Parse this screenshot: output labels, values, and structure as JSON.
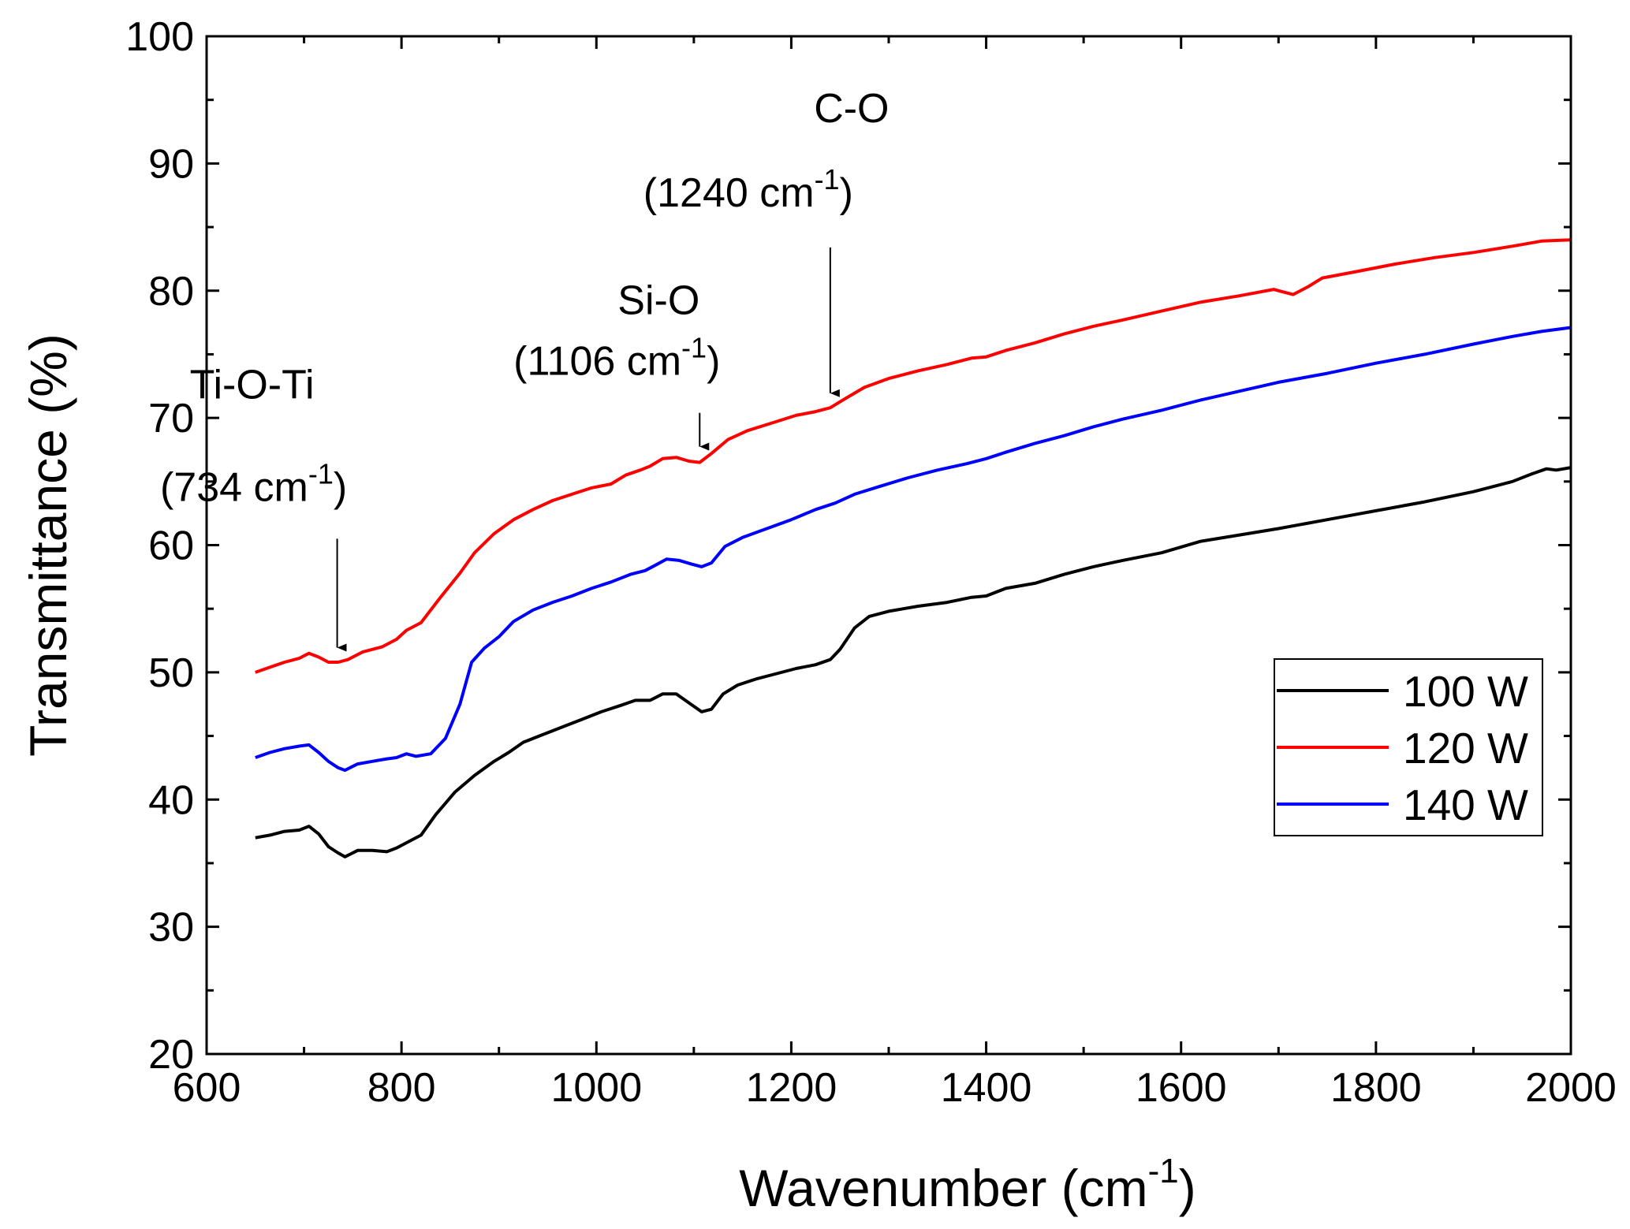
{
  "chart_data": {
    "type": "line",
    "title": "",
    "xlabel": "Wavenumber (cm",
    "xlabel_sup": "-1",
    "xlabel_close": ")",
    "ylabel": "Transmittance (%)",
    "xlim": [
      600,
      2000
    ],
    "ylim": [
      20,
      100
    ],
    "x_ticks": [
      "600",
      "800",
      "1000",
      "1200",
      "1400",
      "1600",
      "1800",
      "2000"
    ],
    "y_ticks": [
      "20",
      "30",
      "40",
      "50",
      "60",
      "70",
      "80",
      "90",
      "100"
    ],
    "grid": false,
    "legend_position": "right-center",
    "series": [
      {
        "name": "100 W",
        "color": "#000000",
        "points": [
          [
            650,
            37.0
          ],
          [
            665,
            37.2
          ],
          [
            680,
            37.5
          ],
          [
            695,
            37.6
          ],
          [
            705,
            37.9
          ],
          [
            715,
            37.3
          ],
          [
            725,
            36.3
          ],
          [
            735,
            35.8
          ],
          [
            742,
            35.5
          ],
          [
            755,
            36.0
          ],
          [
            770,
            36.0
          ],
          [
            785,
            35.9
          ],
          [
            795,
            36.2
          ],
          [
            805,
            36.6
          ],
          [
            820,
            37.2
          ],
          [
            835,
            38.8
          ],
          [
            855,
            40.6
          ],
          [
            875,
            41.9
          ],
          [
            895,
            43.0
          ],
          [
            910,
            43.7
          ],
          [
            925,
            44.5
          ],
          [
            945,
            45.1
          ],
          [
            965,
            45.7
          ],
          [
            985,
            46.3
          ],
          [
            1005,
            46.9
          ],
          [
            1025,
            47.4
          ],
          [
            1040,
            47.8
          ],
          [
            1055,
            47.8
          ],
          [
            1068,
            48.3
          ],
          [
            1082,
            48.3
          ],
          [
            1095,
            47.6
          ],
          [
            1108,
            46.9
          ],
          [
            1118,
            47.1
          ],
          [
            1130,
            48.3
          ],
          [
            1145,
            49.0
          ],
          [
            1165,
            49.5
          ],
          [
            1185,
            49.9
          ],
          [
            1205,
            50.3
          ],
          [
            1225,
            50.6
          ],
          [
            1240,
            51.0
          ],
          [
            1250,
            51.8
          ],
          [
            1265,
            53.5
          ],
          [
            1280,
            54.4
          ],
          [
            1300,
            54.8
          ],
          [
            1330,
            55.2
          ],
          [
            1360,
            55.5
          ],
          [
            1385,
            55.9
          ],
          [
            1400,
            56.0
          ],
          [
            1420,
            56.6
          ],
          [
            1450,
            57.0
          ],
          [
            1480,
            57.7
          ],
          [
            1510,
            58.3
          ],
          [
            1540,
            58.8
          ],
          [
            1580,
            59.4
          ],
          [
            1620,
            60.3
          ],
          [
            1660,
            60.8
          ],
          [
            1700,
            61.3
          ],
          [
            1750,
            62.0
          ],
          [
            1800,
            62.7
          ],
          [
            1850,
            63.4
          ],
          [
            1900,
            64.2
          ],
          [
            1940,
            65.0
          ],
          [
            1960,
            65.6
          ],
          [
            1975,
            66.0
          ],
          [
            1985,
            65.9
          ],
          [
            2000,
            66.1
          ]
        ]
      },
      {
        "name": "120 W",
        "color": "#ff0000",
        "points": [
          [
            650,
            50.0
          ],
          [
            665,
            50.4
          ],
          [
            680,
            50.8
          ],
          [
            695,
            51.1
          ],
          [
            705,
            51.5
          ],
          [
            715,
            51.2
          ],
          [
            725,
            50.8
          ],
          [
            735,
            50.8
          ],
          [
            745,
            51.0
          ],
          [
            760,
            51.6
          ],
          [
            780,
            52.0
          ],
          [
            795,
            52.6
          ],
          [
            805,
            53.3
          ],
          [
            820,
            53.9
          ],
          [
            840,
            55.9
          ],
          [
            860,
            57.8
          ],
          [
            875,
            59.4
          ],
          [
            895,
            60.9
          ],
          [
            915,
            62.0
          ],
          [
            935,
            62.8
          ],
          [
            955,
            63.5
          ],
          [
            975,
            64.0
          ],
          [
            995,
            64.5
          ],
          [
            1015,
            64.8
          ],
          [
            1030,
            65.5
          ],
          [
            1045,
            65.9
          ],
          [
            1055,
            66.2
          ],
          [
            1068,
            66.8
          ],
          [
            1082,
            66.9
          ],
          [
            1095,
            66.6
          ],
          [
            1106,
            66.5
          ],
          [
            1118,
            67.2
          ],
          [
            1135,
            68.3
          ],
          [
            1155,
            69.0
          ],
          [
            1180,
            69.6
          ],
          [
            1205,
            70.2
          ],
          [
            1225,
            70.5
          ],
          [
            1240,
            70.8
          ],
          [
            1255,
            71.5
          ],
          [
            1275,
            72.4
          ],
          [
            1300,
            73.1
          ],
          [
            1330,
            73.7
          ],
          [
            1360,
            74.2
          ],
          [
            1385,
            74.7
          ],
          [
            1400,
            74.8
          ],
          [
            1420,
            75.3
          ],
          [
            1450,
            75.9
          ],
          [
            1480,
            76.6
          ],
          [
            1510,
            77.2
          ],
          [
            1540,
            77.7
          ],
          [
            1580,
            78.4
          ],
          [
            1620,
            79.1
          ],
          [
            1660,
            79.6
          ],
          [
            1695,
            80.1
          ],
          [
            1705,
            79.9
          ],
          [
            1715,
            79.7
          ],
          [
            1730,
            80.3
          ],
          [
            1745,
            81.0
          ],
          [
            1780,
            81.5
          ],
          [
            1820,
            82.1
          ],
          [
            1860,
            82.6
          ],
          [
            1900,
            83.0
          ],
          [
            1940,
            83.5
          ],
          [
            1970,
            83.9
          ],
          [
            2000,
            84.0
          ]
        ]
      },
      {
        "name": "140 W",
        "color": "#0000ff",
        "points": [
          [
            650,
            43.3
          ],
          [
            665,
            43.7
          ],
          [
            680,
            44.0
          ],
          [
            695,
            44.2
          ],
          [
            705,
            44.3
          ],
          [
            715,
            43.7
          ],
          [
            725,
            43.0
          ],
          [
            735,
            42.5
          ],
          [
            742,
            42.3
          ],
          [
            755,
            42.8
          ],
          [
            770,
            43.0
          ],
          [
            785,
            43.2
          ],
          [
            795,
            43.3
          ],
          [
            805,
            43.6
          ],
          [
            815,
            43.4
          ],
          [
            830,
            43.6
          ],
          [
            845,
            44.8
          ],
          [
            860,
            47.5
          ],
          [
            872,
            50.8
          ],
          [
            885,
            51.9
          ],
          [
            900,
            52.8
          ],
          [
            915,
            54.0
          ],
          [
            935,
            54.9
          ],
          [
            955,
            55.5
          ],
          [
            975,
            56.0
          ],
          [
            995,
            56.6
          ],
          [
            1015,
            57.1
          ],
          [
            1035,
            57.7
          ],
          [
            1050,
            58.0
          ],
          [
            1060,
            58.4
          ],
          [
            1072,
            58.9
          ],
          [
            1085,
            58.8
          ],
          [
            1098,
            58.5
          ],
          [
            1108,
            58.3
          ],
          [
            1118,
            58.6
          ],
          [
            1132,
            59.9
          ],
          [
            1150,
            60.6
          ],
          [
            1175,
            61.3
          ],
          [
            1200,
            62.0
          ],
          [
            1225,
            62.8
          ],
          [
            1245,
            63.3
          ],
          [
            1265,
            64.0
          ],
          [
            1290,
            64.6
          ],
          [
            1320,
            65.3
          ],
          [
            1350,
            65.9
          ],
          [
            1380,
            66.4
          ],
          [
            1400,
            66.8
          ],
          [
            1420,
            67.3
          ],
          [
            1450,
            68.0
          ],
          [
            1480,
            68.6
          ],
          [
            1510,
            69.3
          ],
          [
            1540,
            69.9
          ],
          [
            1580,
            70.6
          ],
          [
            1620,
            71.4
          ],
          [
            1660,
            72.1
          ],
          [
            1700,
            72.8
          ],
          [
            1750,
            73.5
          ],
          [
            1800,
            74.3
          ],
          [
            1850,
            75.0
          ],
          [
            1900,
            75.8
          ],
          [
            1940,
            76.4
          ],
          [
            1970,
            76.8
          ],
          [
            2000,
            77.1
          ]
        ]
      }
    ],
    "annotations": [
      {
        "label": "Ti-O-Ti",
        "peak_text": "(734 cm",
        "peak_sup": "-1",
        "peak_close": ")",
        "x": 734,
        "arrow_from_y": 60.5,
        "arrow_to_y": 51.2
      },
      {
        "label": "Si-O",
        "peak_text": "(1106 cm",
        "peak_sup": "-1",
        "peak_close": ")",
        "x": 1106,
        "arrow_from_y": 70.4,
        "arrow_to_y": 67.0
      },
      {
        "label": "C-O",
        "peak_text": "(1240 cm",
        "peak_sup": "-1",
        "peak_close": ")",
        "x": 1240,
        "arrow_from_y": 83.4,
        "arrow_to_y": 71.2
      }
    ]
  }
}
